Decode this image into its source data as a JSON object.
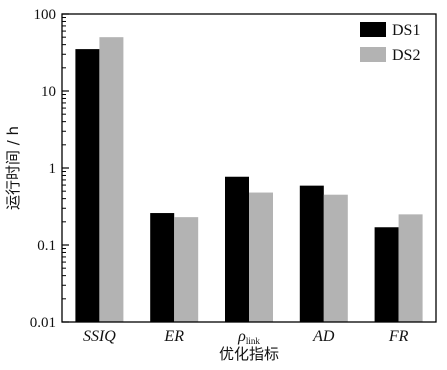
{
  "chart_data": {
    "type": "bar",
    "title": "",
    "xlabel": "优化指标",
    "ylabel": "运行时间 / h",
    "yscale": "log",
    "ylim": [
      0.01,
      100
    ],
    "yticks": [
      0.01,
      0.1,
      1,
      10,
      100
    ],
    "ytick_labels": [
      "0.01",
      "0.1",
      "1",
      "10",
      "100"
    ],
    "categories": [
      {
        "main": "SSIQ",
        "sub": ""
      },
      {
        "main": "ER",
        "sub": ""
      },
      {
        "main": "ρ",
        "sub": "link"
      },
      {
        "main": "AD",
        "sub": ""
      },
      {
        "main": "FR",
        "sub": ""
      }
    ],
    "series": [
      {
        "name": "DS1",
        "color": "#000000",
        "values": [
          35,
          0.26,
          0.77,
          0.59,
          0.17
        ]
      },
      {
        "name": "DS2",
        "color": "#b3b3b3",
        "values": [
          50,
          0.23,
          0.48,
          0.45,
          0.25
        ]
      }
    ],
    "legend_position": "top-right",
    "grid": false
  }
}
